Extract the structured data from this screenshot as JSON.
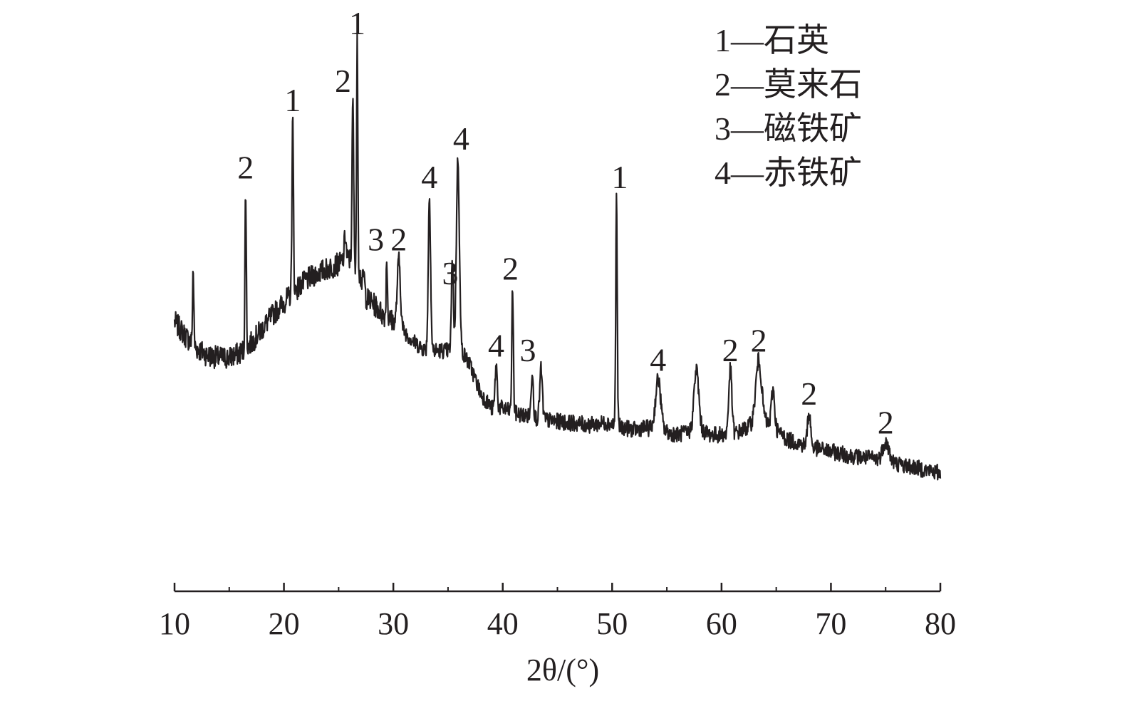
{
  "chart_data": {
    "type": "line",
    "title": "",
    "xlabel": "2θ/(°)",
    "ylabel": "",
    "xlim": [
      10,
      80
    ],
    "ylim": [
      0,
      100
    ],
    "x_ticks": [
      10,
      20,
      30,
      40,
      50,
      60,
      70,
      80
    ],
    "y_axis_shown": false,
    "grid": false,
    "legend_position": "top-right",
    "line_color": "#231f20",
    "legend": [
      {
        "marker": "1",
        "name": "石英"
      },
      {
        "marker": "2",
        "name": "莫来石"
      },
      {
        "marker": "3",
        "name": "磁铁矿"
      },
      {
        "marker": "4",
        "name": "赤铁矿"
      }
    ],
    "background": [
      [
        10,
        42
      ],
      [
        11,
        39
      ],
      [
        12,
        36.5
      ],
      [
        13,
        35
      ],
      [
        14,
        34.5
      ],
      [
        15,
        34.5
      ],
      [
        16,
        35.5
      ],
      [
        17,
        37.5
      ],
      [
        18,
        40.5
      ],
      [
        19,
        43.5
      ],
      [
        20,
        46
      ],
      [
        21,
        48.5
      ],
      [
        22,
        50.5
      ],
      [
        23,
        52
      ],
      [
        24,
        53
      ],
      [
        25,
        54
      ],
      [
        26,
        55
      ],
      [
        26.8,
        53
      ],
      [
        27.5,
        47
      ],
      [
        28.5,
        45
      ],
      [
        29,
        43.5
      ],
      [
        30,
        42
      ],
      [
        31,
        40
      ],
      [
        32,
        37.5
      ],
      [
        33,
        36
      ],
      [
        34,
        36
      ],
      [
        35,
        36
      ],
      [
        36,
        37
      ],
      [
        37,
        33
      ],
      [
        38,
        27
      ],
      [
        39,
        24
      ],
      [
        40,
        24
      ],
      [
        41,
        23
      ],
      [
        42,
        22.5
      ],
      [
        44,
        21.5
      ],
      [
        46,
        21
      ],
      [
        48,
        20.5
      ],
      [
        49.5,
        21
      ],
      [
        51,
        20
      ],
      [
        52,
        19.5
      ],
      [
        53,
        20
      ],
      [
        55,
        19
      ],
      [
        56,
        18.5
      ],
      [
        57,
        19
      ],
      [
        58,
        19.5
      ],
      [
        59,
        18.5
      ],
      [
        60,
        18.5
      ],
      [
        61,
        18.5
      ],
      [
        62,
        19.5
      ],
      [
        63,
        21
      ],
      [
        64,
        21
      ],
      [
        65,
        19.5
      ],
      [
        66,
        17.5
      ],
      [
        68,
        16
      ],
      [
        70,
        15
      ],
      [
        72,
        14
      ],
      [
        74,
        13.5
      ],
      [
        76,
        12.5
      ],
      [
        78,
        11.5
      ],
      [
        80,
        10.5
      ]
    ],
    "peaks": [
      {
        "x": 11.7,
        "y": 53,
        "width": 0.12
      },
      {
        "x": 16.5,
        "y": 70,
        "width": 0.12
      },
      {
        "x": 20.8,
        "y": 84,
        "width": 0.14
      },
      {
        "x": 25.6,
        "y": 60,
        "width": 0.18
      },
      {
        "x": 26.3,
        "y": 88,
        "width": 0.15
      },
      {
        "x": 26.7,
        "y": 100,
        "width": 0.12
      },
      {
        "x": 27.3,
        "y": 52,
        "width": 0.15
      },
      {
        "x": 29.4,
        "y": 55,
        "width": 0.12
      },
      {
        "x": 30.5,
        "y": 55,
        "width": 0.3
      },
      {
        "x": 33.3,
        "y": 68,
        "width": 0.22
      },
      {
        "x": 35.4,
        "y": 55,
        "width": 0.18
      },
      {
        "x": 35.9,
        "y": 76,
        "width": 0.28
      },
      {
        "x": 39.4,
        "y": 33,
        "width": 0.2
      },
      {
        "x": 40.9,
        "y": 49,
        "width": 0.15
      },
      {
        "x": 42.7,
        "y": 32,
        "width": 0.2
      },
      {
        "x": 43.5,
        "y": 32,
        "width": 0.25
      },
      {
        "x": 50.4,
        "y": 68,
        "width": 0.14
      },
      {
        "x": 54.2,
        "y": 30,
        "width": 0.5
      },
      {
        "x": 57.7,
        "y": 32,
        "width": 0.45
      },
      {
        "x": 60.8,
        "y": 32,
        "width": 0.3
      },
      {
        "x": 63.4,
        "y": 34,
        "width": 0.55
      },
      {
        "x": 64.7,
        "y": 28,
        "width": 0.3
      },
      {
        "x": 68.0,
        "y": 23,
        "width": 0.3
      },
      {
        "x": 75.0,
        "y": 17,
        "width": 0.6
      }
    ],
    "peak_labels": [
      {
        "text": "2",
        "x": 16.5,
        "y": 70
      },
      {
        "text": "1",
        "x": 20.8,
        "y": 84
      },
      {
        "text": "2",
        "x": 25.4,
        "y": 88
      },
      {
        "text": "1",
        "x": 26.7,
        "y": 100
      },
      {
        "text": "3",
        "x": 28.4,
        "y": 55
      },
      {
        "text": "2",
        "x": 30.5,
        "y": 55
      },
      {
        "text": "4",
        "x": 33.3,
        "y": 68
      },
      {
        "text": "3",
        "x": 35.2,
        "y": 48
      },
      {
        "text": "4",
        "x": 36.2,
        "y": 76
      },
      {
        "text": "2",
        "x": 40.7,
        "y": 49
      },
      {
        "text": "4",
        "x": 39.4,
        "y": 33
      },
      {
        "text": "3",
        "x": 42.3,
        "y": 32
      },
      {
        "text": "1",
        "x": 50.7,
        "y": 68
      },
      {
        "text": "4",
        "x": 54.2,
        "y": 30
      },
      {
        "text": "2",
        "x": 60.8,
        "y": 32
      },
      {
        "text": "2",
        "x": 63.4,
        "y": 34
      },
      {
        "text": "2",
        "x": 68.0,
        "y": 23
      },
      {
        "text": "2",
        "x": 75.0,
        "y": 17
      }
    ]
  }
}
